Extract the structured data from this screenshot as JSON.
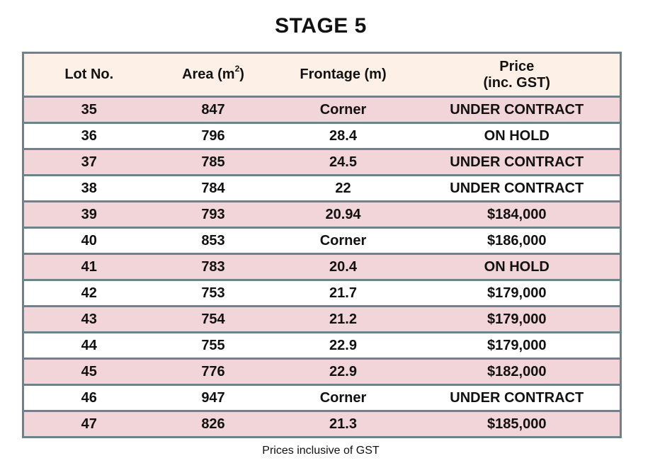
{
  "title": "STAGE 5",
  "headers": {
    "lot": "Lot No.",
    "area_prefix": "Area (m",
    "area_sup": "2",
    "area_suffix": ")",
    "frontage": "Frontage (m)",
    "price_line1": "Price",
    "price_line2": "(inc. GST)"
  },
  "colors": {
    "header_bg": "#fdf0e6",
    "row_pink": "#f1d5d8",
    "row_white": "#ffffff",
    "border": "#6c838c",
    "under_contract": "#c0141c",
    "on_hold": "#1a3068"
  },
  "rows": [
    {
      "lot": "35",
      "area": "847",
      "frontage": "Corner",
      "price": "UNDER CONTRACT",
      "status": "red"
    },
    {
      "lot": "36",
      "area": "796",
      "frontage": "28.4",
      "price": "ON HOLD",
      "status": "navy"
    },
    {
      "lot": "37",
      "area": "785",
      "frontage": "24.5",
      "price": "UNDER CONTRACT",
      "status": "red"
    },
    {
      "lot": "38",
      "area": "784",
      "frontage": "22",
      "price": "UNDER CONTRACT",
      "status": "red"
    },
    {
      "lot": "39",
      "area": "793",
      "frontage": "20.94",
      "price": "$184,000",
      "status": "black"
    },
    {
      "lot": "40",
      "area": "853",
      "frontage": "Corner",
      "price": "$186,000",
      "status": "black"
    },
    {
      "lot": "41",
      "area": "783",
      "frontage": "20.4",
      "price": "ON HOLD",
      "status": "navy"
    },
    {
      "lot": "42",
      "area": "753",
      "frontage": "21.7",
      "price": "$179,000",
      "status": "black"
    },
    {
      "lot": "43",
      "area": "754",
      "frontage": "21.2",
      "price": "$179,000",
      "status": "black"
    },
    {
      "lot": "44",
      "area": "755",
      "frontage": "22.9",
      "price": "$179,000",
      "status": "black"
    },
    {
      "lot": "45",
      "area": "776",
      "frontage": "22.9",
      "price": "$182,000",
      "status": "black"
    },
    {
      "lot": "46",
      "area": "947",
      "frontage": "Corner",
      "price": "UNDER CONTRACT",
      "status": "red"
    },
    {
      "lot": "47",
      "area": "826",
      "frontage": "21.3",
      "price": "$185,000",
      "status": "black"
    }
  ],
  "footnote": "Prices inclusive of GST"
}
